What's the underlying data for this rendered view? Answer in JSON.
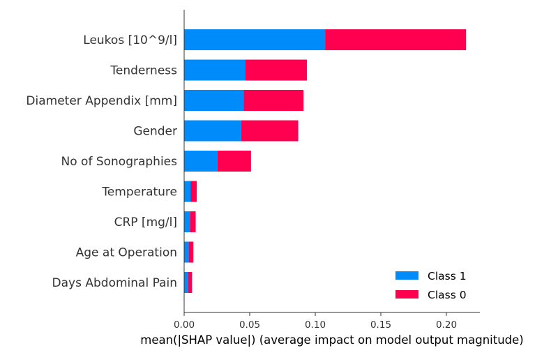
{
  "chart_data": {
    "type": "bar",
    "orientation": "horizontal",
    "stacked": true,
    "categories": [
      "Leukos [10^9/l]",
      "Tenderness",
      "Diameter Appendix [mm]",
      "Gender",
      "No of Sonographies",
      "Temperature",
      "CRP [mg/l]",
      "Age at Operation",
      "Days Abdominal Pain"
    ],
    "series": [
      {
        "name": "Class 1",
        "color": "#008bfb",
        "values": [
          0.1075,
          0.0468,
          0.0455,
          0.0435,
          0.0255,
          0.0048,
          0.0044,
          0.0035,
          0.003
        ]
      },
      {
        "name": "Class 0",
        "color": "#ff0051",
        "values": [
          0.1075,
          0.0468,
          0.0455,
          0.0435,
          0.0255,
          0.0048,
          0.0044,
          0.0035,
          0.003
        ]
      }
    ],
    "xlabel": "mean(|SHAP value|) (average impact on model output magnitude)",
    "xlim": [
      0,
      0.225
    ],
    "xticks": [
      "0.00",
      "0.05",
      "0.10",
      "0.15",
      "0.20"
    ],
    "xtick_values": [
      0,
      0.05,
      0.1,
      0.15,
      0.2
    ],
    "legend_entries": [
      "Class 1",
      "Class 0"
    ],
    "legend_position": "lower-right",
    "grid": false
  }
}
